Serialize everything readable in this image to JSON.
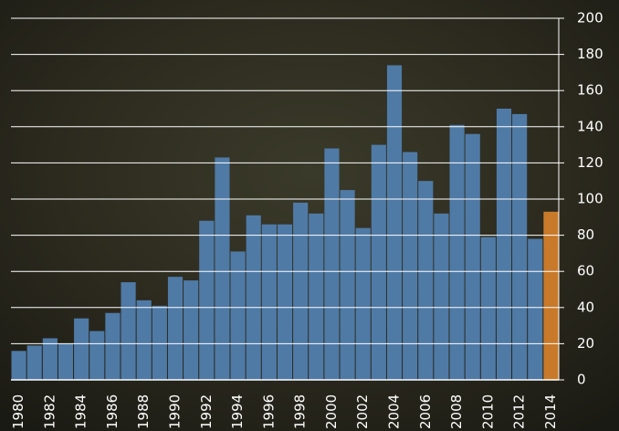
{
  "chart_data": {
    "type": "bar",
    "categories": [
      "1980",
      null,
      "1982",
      null,
      "1984",
      null,
      "1986",
      null,
      "1988",
      null,
      "1990",
      null,
      "1992",
      null,
      "1994",
      null,
      "1996",
      null,
      "1998",
      null,
      "2000",
      null,
      "2002",
      null,
      "2004",
      null,
      "2006",
      null,
      "2008",
      null,
      "2010",
      null,
      "2012",
      null,
      "2014"
    ],
    "values": [
      16,
      19,
      23,
      20,
      34,
      27,
      37,
      54,
      44,
      41,
      57,
      55,
      88,
      123,
      71,
      91,
      86,
      86,
      98,
      92,
      128,
      105,
      84,
      130,
      174,
      126,
      110,
      92,
      141,
      136,
      79,
      150,
      147,
      78,
      93
    ],
    "colors": [
      "#4f7aa6",
      "#4f7aa6",
      "#4f7aa6",
      "#4f7aa6",
      "#4f7aa6",
      "#4f7aa6",
      "#4f7aa6",
      "#4f7aa6",
      "#4f7aa6",
      "#4f7aa6",
      "#4f7aa6",
      "#4f7aa6",
      "#4f7aa6",
      "#4f7aa6",
      "#4f7aa6",
      "#4f7aa6",
      "#4f7aa6",
      "#4f7aa6",
      "#4f7aa6",
      "#4f7aa6",
      "#4f7aa6",
      "#4f7aa6",
      "#4f7aa6",
      "#4f7aa6",
      "#4f7aa6",
      "#4f7aa6",
      "#4f7aa6",
      "#4f7aa6",
      "#4f7aa6",
      "#4f7aa6",
      "#4f7aa6",
      "#4f7aa6",
      "#4f7aa6",
      "#4f7aa6",
      "#c87a2a"
    ],
    "ylim": [
      0,
      200
    ],
    "yticks": [
      0,
      20,
      40,
      60,
      80,
      100,
      120,
      140,
      160,
      180,
      200
    ],
    "grid": true,
    "y_axis_side": "right"
  }
}
